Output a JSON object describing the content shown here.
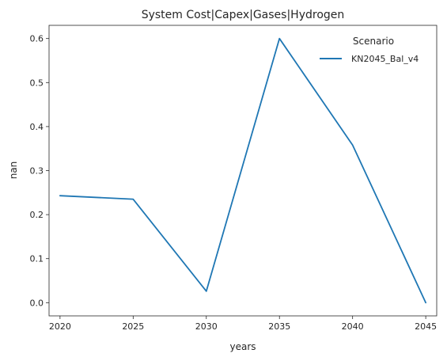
{
  "chart_data": {
    "type": "line",
    "title": "System Cost|Capex|Gases|Hydrogen",
    "xlabel": "years",
    "ylabel": "nan",
    "x": [
      2020,
      2025,
      2030,
      2035,
      2040,
      2045
    ],
    "xticks": [
      "2020",
      "2025",
      "2030",
      "2035",
      "2040",
      "2045"
    ],
    "yticks": [
      "0.0",
      "0.1",
      "0.2",
      "0.3",
      "0.4",
      "0.5",
      "0.6"
    ],
    "xlim": [
      2019.25,
      2045.75
    ],
    "ylim": [
      -0.03,
      0.63
    ],
    "grid": false,
    "legend": {
      "title": "Scenario",
      "placement": "top-right"
    },
    "series": [
      {
        "name": "KN2045_Bal_v4",
        "color": "#1f77b4",
        "values": [
          0.243,
          0.235,
          0.026,
          0.6,
          0.358,
          0.0
        ]
      }
    ]
  }
}
